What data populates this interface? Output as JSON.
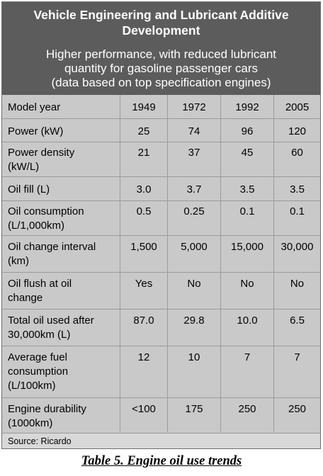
{
  "header": {
    "title_line1": "Vehicle Engineering and Lubricant Additive",
    "title_line2": "Development",
    "subtitle_line1": "Higher performance, with reduced lubricant",
    "subtitle_line2": "quantity for gasoline passenger cars",
    "subtitle_line3": "(data based on top specification engines)"
  },
  "table": {
    "rows": [
      {
        "label": [
          "Model year"
        ],
        "values": [
          "1949",
          "1972",
          "1992",
          "2005"
        ]
      },
      {
        "label": [
          "Power (kW)"
        ],
        "values": [
          "25",
          "74",
          "96",
          "120"
        ]
      },
      {
        "label": [
          "Power density",
          "(kW/L)"
        ],
        "values": [
          "21",
          "37",
          "45",
          "60"
        ]
      },
      {
        "label": [
          "Oil fill (L)"
        ],
        "values": [
          "3.0",
          "3.7",
          "3.5",
          "3.5"
        ]
      },
      {
        "label": [
          "Oil consumption",
          "(L/1,000km)"
        ],
        "values": [
          "0.5",
          "0.25",
          "0.1",
          "0.1"
        ]
      },
      {
        "label": [
          "Oil change interval",
          "(km)"
        ],
        "values": [
          "1,500",
          "5,000",
          "15,000",
          "30,000"
        ]
      },
      {
        "label": [
          "Oil flush at oil",
          "change"
        ],
        "values": [
          "Yes",
          "No",
          "No",
          "No"
        ]
      },
      {
        "label": [
          "Total oil used after",
          "30,000km  (L)"
        ],
        "values": [
          "87.0",
          "29.8",
          "10.0",
          "6.5"
        ]
      },
      {
        "label": [
          "Average fuel",
          "consumption",
          "(L/100km)"
        ],
        "values": [
          "12",
          "10",
          "7",
          "7"
        ]
      },
      {
        "label": [
          "Engine durability",
          "(1000km)"
        ],
        "values": [
          "<100",
          "175",
          "250",
          "250"
        ]
      }
    ]
  },
  "source": "Source: Ricardo",
  "caption": "Table 5.  Engine oil use trends"
}
